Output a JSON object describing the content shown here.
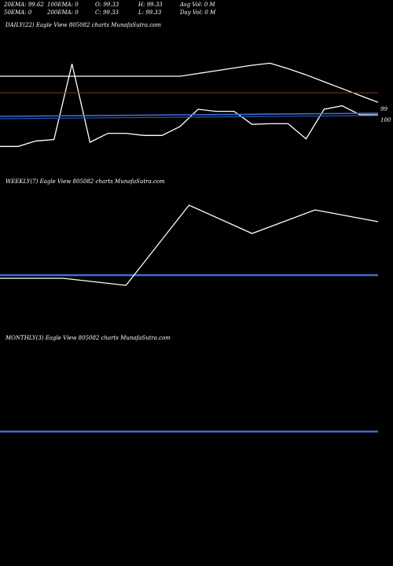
{
  "header": {
    "row1": [
      "20EMA: 99.62",
      "100EMA: 0",
      "O: 99.33",
      "H: 99.33",
      "Avg Vol: 0  M"
    ],
    "row2": [
      "50EMA: 0",
      "200EMA: 0",
      "C: 99.33",
      "L: 99.33",
      "Day Vol: 0  M"
    ]
  },
  "panels": {
    "daily": "DAILY(22) Eagle  View  805082  charts MunafaSutra.com",
    "weekly": "WEEKLY(7) Eagle  View  805082  charts MunafaSutra.com",
    "monthly": "MONTHLY(3) Eagle  View  805082  charts MunafaSutra.com"
  },
  "colors": {
    "background": "#000000",
    "price": "#ffffff",
    "ema": "#3a6fd8",
    "reference": "#7b3a2a"
  },
  "chart_data": [
    {
      "type": "line",
      "name": "daily",
      "series": [
        {
          "values": [
            85,
            85,
            85.8,
            86,
            97,
            85.6,
            86.9,
            86.9,
            86.6,
            86.6,
            87.9,
            90.4,
            90.1,
            90.1,
            88.2,
            88.3,
            88.3,
            86.1,
            90.4,
            90.9,
            89.6,
            89.6
          ]
        },
        {
          "values": [
            95.2,
            95.2,
            95.2,
            95.2,
            95.2,
            95.2,
            95.2,
            95.2,
            95.2,
            95.2,
            95.2,
            95.6,
            96.0,
            96.4,
            96.8,
            97.1,
            96.3,
            95.4,
            94.4,
            93.4,
            92.4,
            91.4
          ]
        }
      ],
      "ema_levels": [
        99.0,
        99.3
      ],
      "reference_level": 100,
      "tick_labels": [
        "99",
        "100"
      ]
    },
    {
      "type": "line",
      "name": "weekly",
      "series": [
        {
          "values": [
            93.2,
            93.2,
            92.9,
            96.3,
            95.1,
            96.1,
            95.6
          ]
        }
      ],
      "ema_level": 99.62
    },
    {
      "type": "line",
      "name": "monthly",
      "series": [],
      "ema_level": 99.62
    }
  ]
}
